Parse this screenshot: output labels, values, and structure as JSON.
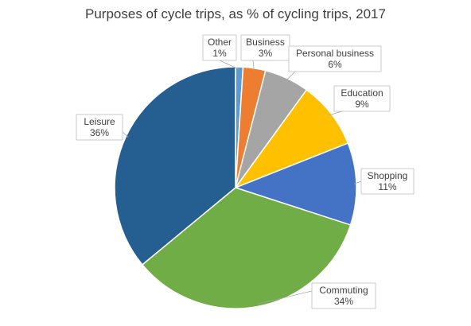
{
  "chart_data": {
    "type": "pie",
    "title": "Purposes of cycle trips, as % of cycling trips, 2017",
    "slices": [
      {
        "label": "Other",
        "value": 1,
        "value_label": "1%",
        "color": "#5b9bd5"
      },
      {
        "label": "Business",
        "value": 3,
        "value_label": "3%",
        "color": "#ed7d31"
      },
      {
        "label": "Personal business",
        "value": 6,
        "value_label": "6%",
        "color": "#a5a5a5"
      },
      {
        "label": "Education",
        "value": 9,
        "value_label": "9%",
        "color": "#ffc000"
      },
      {
        "label": "Shopping",
        "value": 11,
        "value_label": "11%",
        "color": "#4472c4"
      },
      {
        "label": "Commuting",
        "value": 34,
        "value_label": "34%",
        "color": "#70ad47"
      },
      {
        "label": "Leisure",
        "value": 36,
        "value_label": "36%",
        "color": "#255e91"
      }
    ],
    "legend": "none",
    "data_labels": "callouts"
  }
}
